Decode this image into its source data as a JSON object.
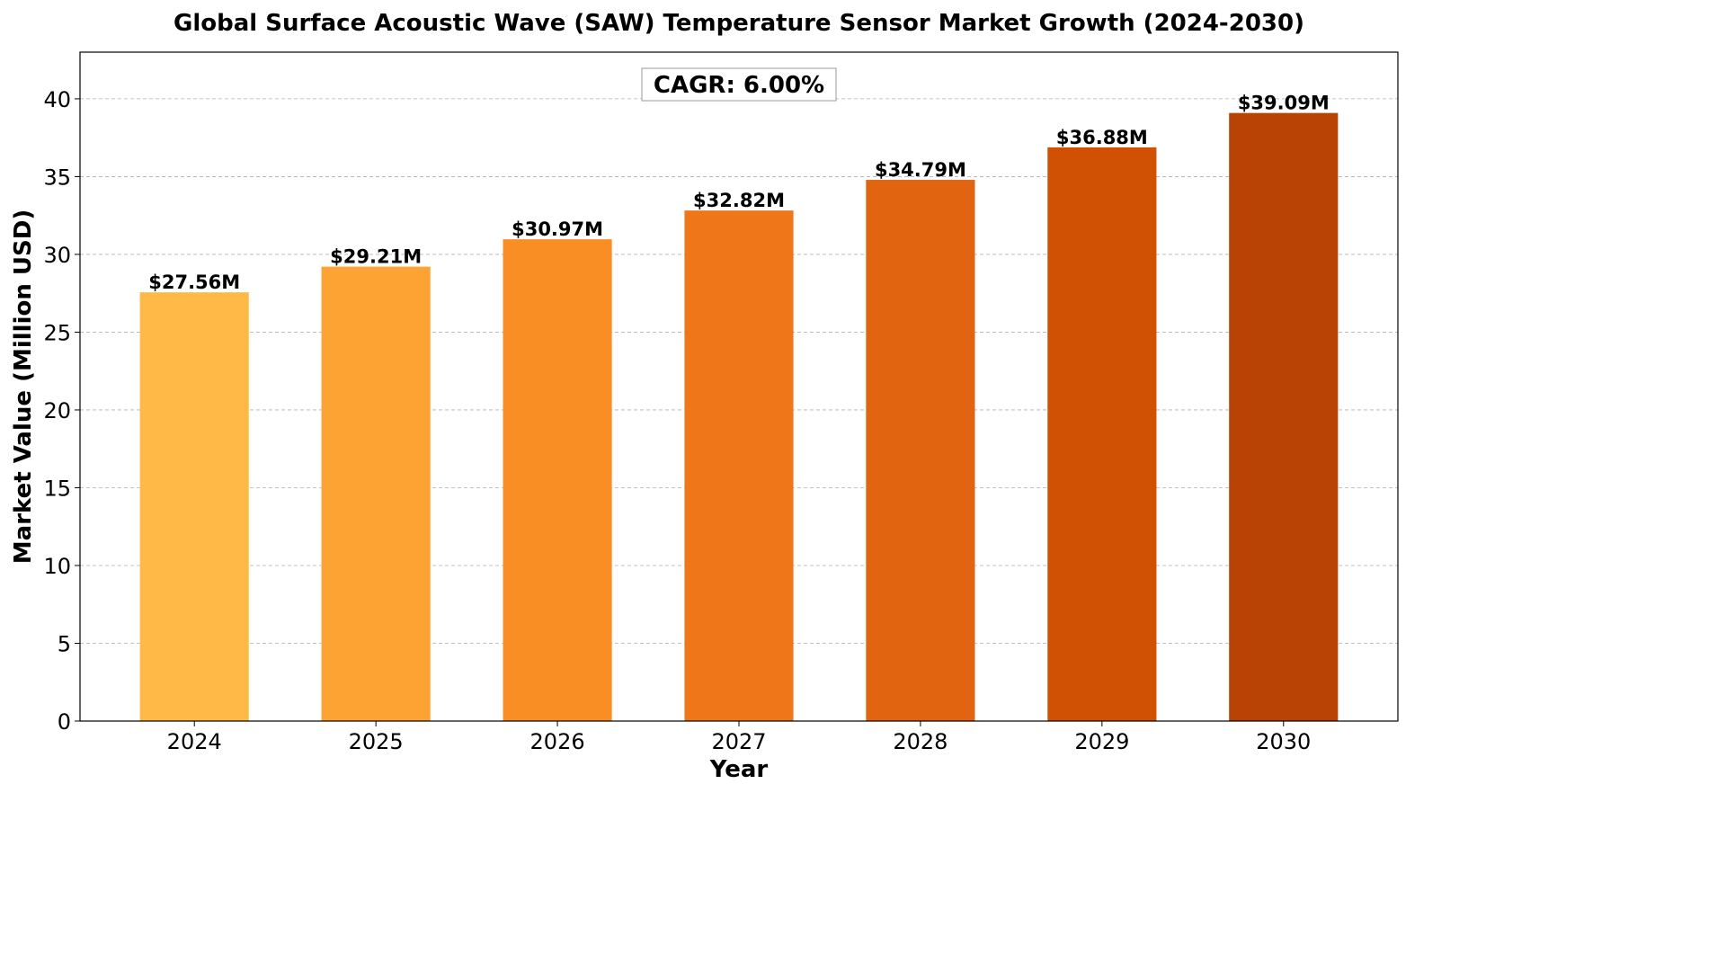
{
  "chart_data": {
    "type": "bar",
    "title": "Global Surface Acoustic Wave (SAW) Temperature Sensor Market Growth (2024-2030)",
    "xlabel": "Year",
    "ylabel": "Market Value (Million USD)",
    "categories": [
      "2024",
      "2025",
      "2026",
      "2027",
      "2028",
      "2029",
      "2030"
    ],
    "values": [
      27.56,
      29.21,
      30.97,
      32.82,
      34.79,
      36.88,
      39.09
    ],
    "data_labels": [
      "$27.56M",
      "$29.21M",
      "$30.97M",
      "$32.82M",
      "$34.79M",
      "$36.88M",
      "$39.09M"
    ],
    "colors": [
      "#FEB947",
      "#FDA333",
      "#F98E24",
      "#F07719",
      "#E16410",
      "#D15104",
      "#B84304"
    ],
    "ylim": [
      0,
      43
    ],
    "yticks": [
      0,
      5,
      10,
      15,
      20,
      25,
      30,
      35,
      40
    ],
    "grid": "horizontal dashed",
    "annotation": "CAGR: 6.00%"
  }
}
